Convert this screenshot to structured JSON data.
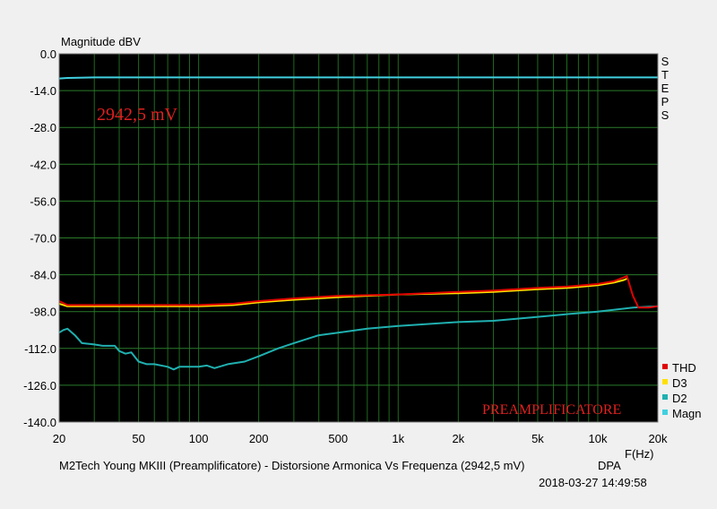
{
  "chart_data": {
    "type": "line",
    "ylabel": "Magnitude dBV",
    "xlabel": "F(Hz)",
    "x_scale": "log",
    "xlim": [
      20,
      20000
    ],
    "ylim": [
      -140,
      0
    ],
    "y_ticks": [
      0,
      -14,
      -28,
      -42,
      -56,
      -70,
      -84,
      -98,
      -112,
      -126,
      -140
    ],
    "y_tick_labels": [
      "0.0",
      "-14.0",
      "-28.0",
      "-42.0",
      "-56.0",
      "-70.0",
      "-84.0",
      "-98.0",
      "-112.0",
      "-126.0",
      "-140.0"
    ],
    "x_ticks": [
      20,
      50,
      100,
      200,
      500,
      1000,
      2000,
      5000,
      10000,
      20000
    ],
    "x_tick_labels": [
      "20",
      "50",
      "100",
      "200",
      "500",
      "1k",
      "2k",
      "5k",
      "10k",
      "20k"
    ],
    "grid": true,
    "background": "#000000",
    "side_label": "STEPS",
    "legend_position": "bottom-right",
    "series": [
      {
        "name": "THD",
        "color": "#e00000",
        "points": [
          [
            20,
            -94
          ],
          [
            22,
            -95.5
          ],
          [
            25,
            -95.5
          ],
          [
            30,
            -95.5
          ],
          [
            50,
            -95.5
          ],
          [
            100,
            -95.5
          ],
          [
            150,
            -95
          ],
          [
            200,
            -94
          ],
          [
            300,
            -93
          ],
          [
            500,
            -92
          ],
          [
            1000,
            -91.5
          ],
          [
            2000,
            -90.5
          ],
          [
            3000,
            -90
          ],
          [
            5000,
            -89
          ],
          [
            7000,
            -88.5
          ],
          [
            10000,
            -87.5
          ],
          [
            12000,
            -86.5
          ],
          [
            13500,
            -85
          ],
          [
            14000,
            -84.5
          ],
          [
            15000,
            -92
          ],
          [
            16000,
            -96.5
          ],
          [
            18000,
            -96.5
          ],
          [
            20000,
            -96
          ]
        ]
      },
      {
        "name": "D3",
        "color": "#ffe000",
        "points": [
          [
            20,
            -95
          ],
          [
            22,
            -96
          ],
          [
            25,
            -96
          ],
          [
            50,
            -96
          ],
          [
            100,
            -96
          ],
          [
            150,
            -95.5
          ],
          [
            200,
            -94.5
          ],
          [
            300,
            -93.5
          ],
          [
            500,
            -92.5
          ],
          [
            1000,
            -91.5
          ],
          [
            2000,
            -91
          ],
          [
            3000,
            -90.5
          ],
          [
            5000,
            -89.5
          ],
          [
            7000,
            -89
          ],
          [
            10000,
            -88
          ],
          [
            12000,
            -87
          ],
          [
            13500,
            -86
          ],
          [
            14000,
            -85.5
          ]
        ]
      },
      {
        "name": "D2",
        "color": "#20b0b0",
        "points": [
          [
            20,
            -106
          ],
          [
            21,
            -105
          ],
          [
            22,
            -104.5
          ],
          [
            24,
            -107
          ],
          [
            26,
            -110
          ],
          [
            30,
            -110.5
          ],
          [
            33,
            -111
          ],
          [
            38,
            -111
          ],
          [
            40,
            -113
          ],
          [
            43,
            -114
          ],
          [
            46,
            -113.5
          ],
          [
            50,
            -117
          ],
          [
            55,
            -118
          ],
          [
            60,
            -118
          ],
          [
            70,
            -119
          ],
          [
            75,
            -120
          ],
          [
            80,
            -119
          ],
          [
            90,
            -119
          ],
          [
            100,
            -119
          ],
          [
            110,
            -118.5
          ],
          [
            120,
            -119.5
          ],
          [
            140,
            -118
          ],
          [
            170,
            -117
          ],
          [
            200,
            -115
          ],
          [
            250,
            -112
          ],
          [
            300,
            -110
          ],
          [
            400,
            -107
          ],
          [
            500,
            -106
          ],
          [
            700,
            -104.5
          ],
          [
            1000,
            -103.5
          ],
          [
            2000,
            -102
          ],
          [
            3000,
            -101.5
          ],
          [
            5000,
            -100
          ],
          [
            7000,
            -99
          ],
          [
            10000,
            -98
          ],
          [
            15000,
            -96.5
          ],
          [
            20000,
            -96
          ]
        ]
      },
      {
        "name": "Magn",
        "color": "#40d0e0",
        "points": [
          [
            20,
            -9.4
          ],
          [
            22,
            -9.2
          ],
          [
            30,
            -9
          ],
          [
            100,
            -9
          ],
          [
            1000,
            -9
          ],
          [
            10000,
            -9
          ],
          [
            20000,
            -9
          ]
        ]
      }
    ]
  },
  "annotations": {
    "level_label": "2942,5 mV",
    "device_label": "PREAMPLIFICATORE"
  },
  "footer": {
    "caption": "M2Tech Young MKIII (Preamplificatore) - Distorsione Armonica Vs Frequenza (2942,5 mV)",
    "brand": "DPA",
    "timestamp": "2018-03-27 14:49:58"
  }
}
